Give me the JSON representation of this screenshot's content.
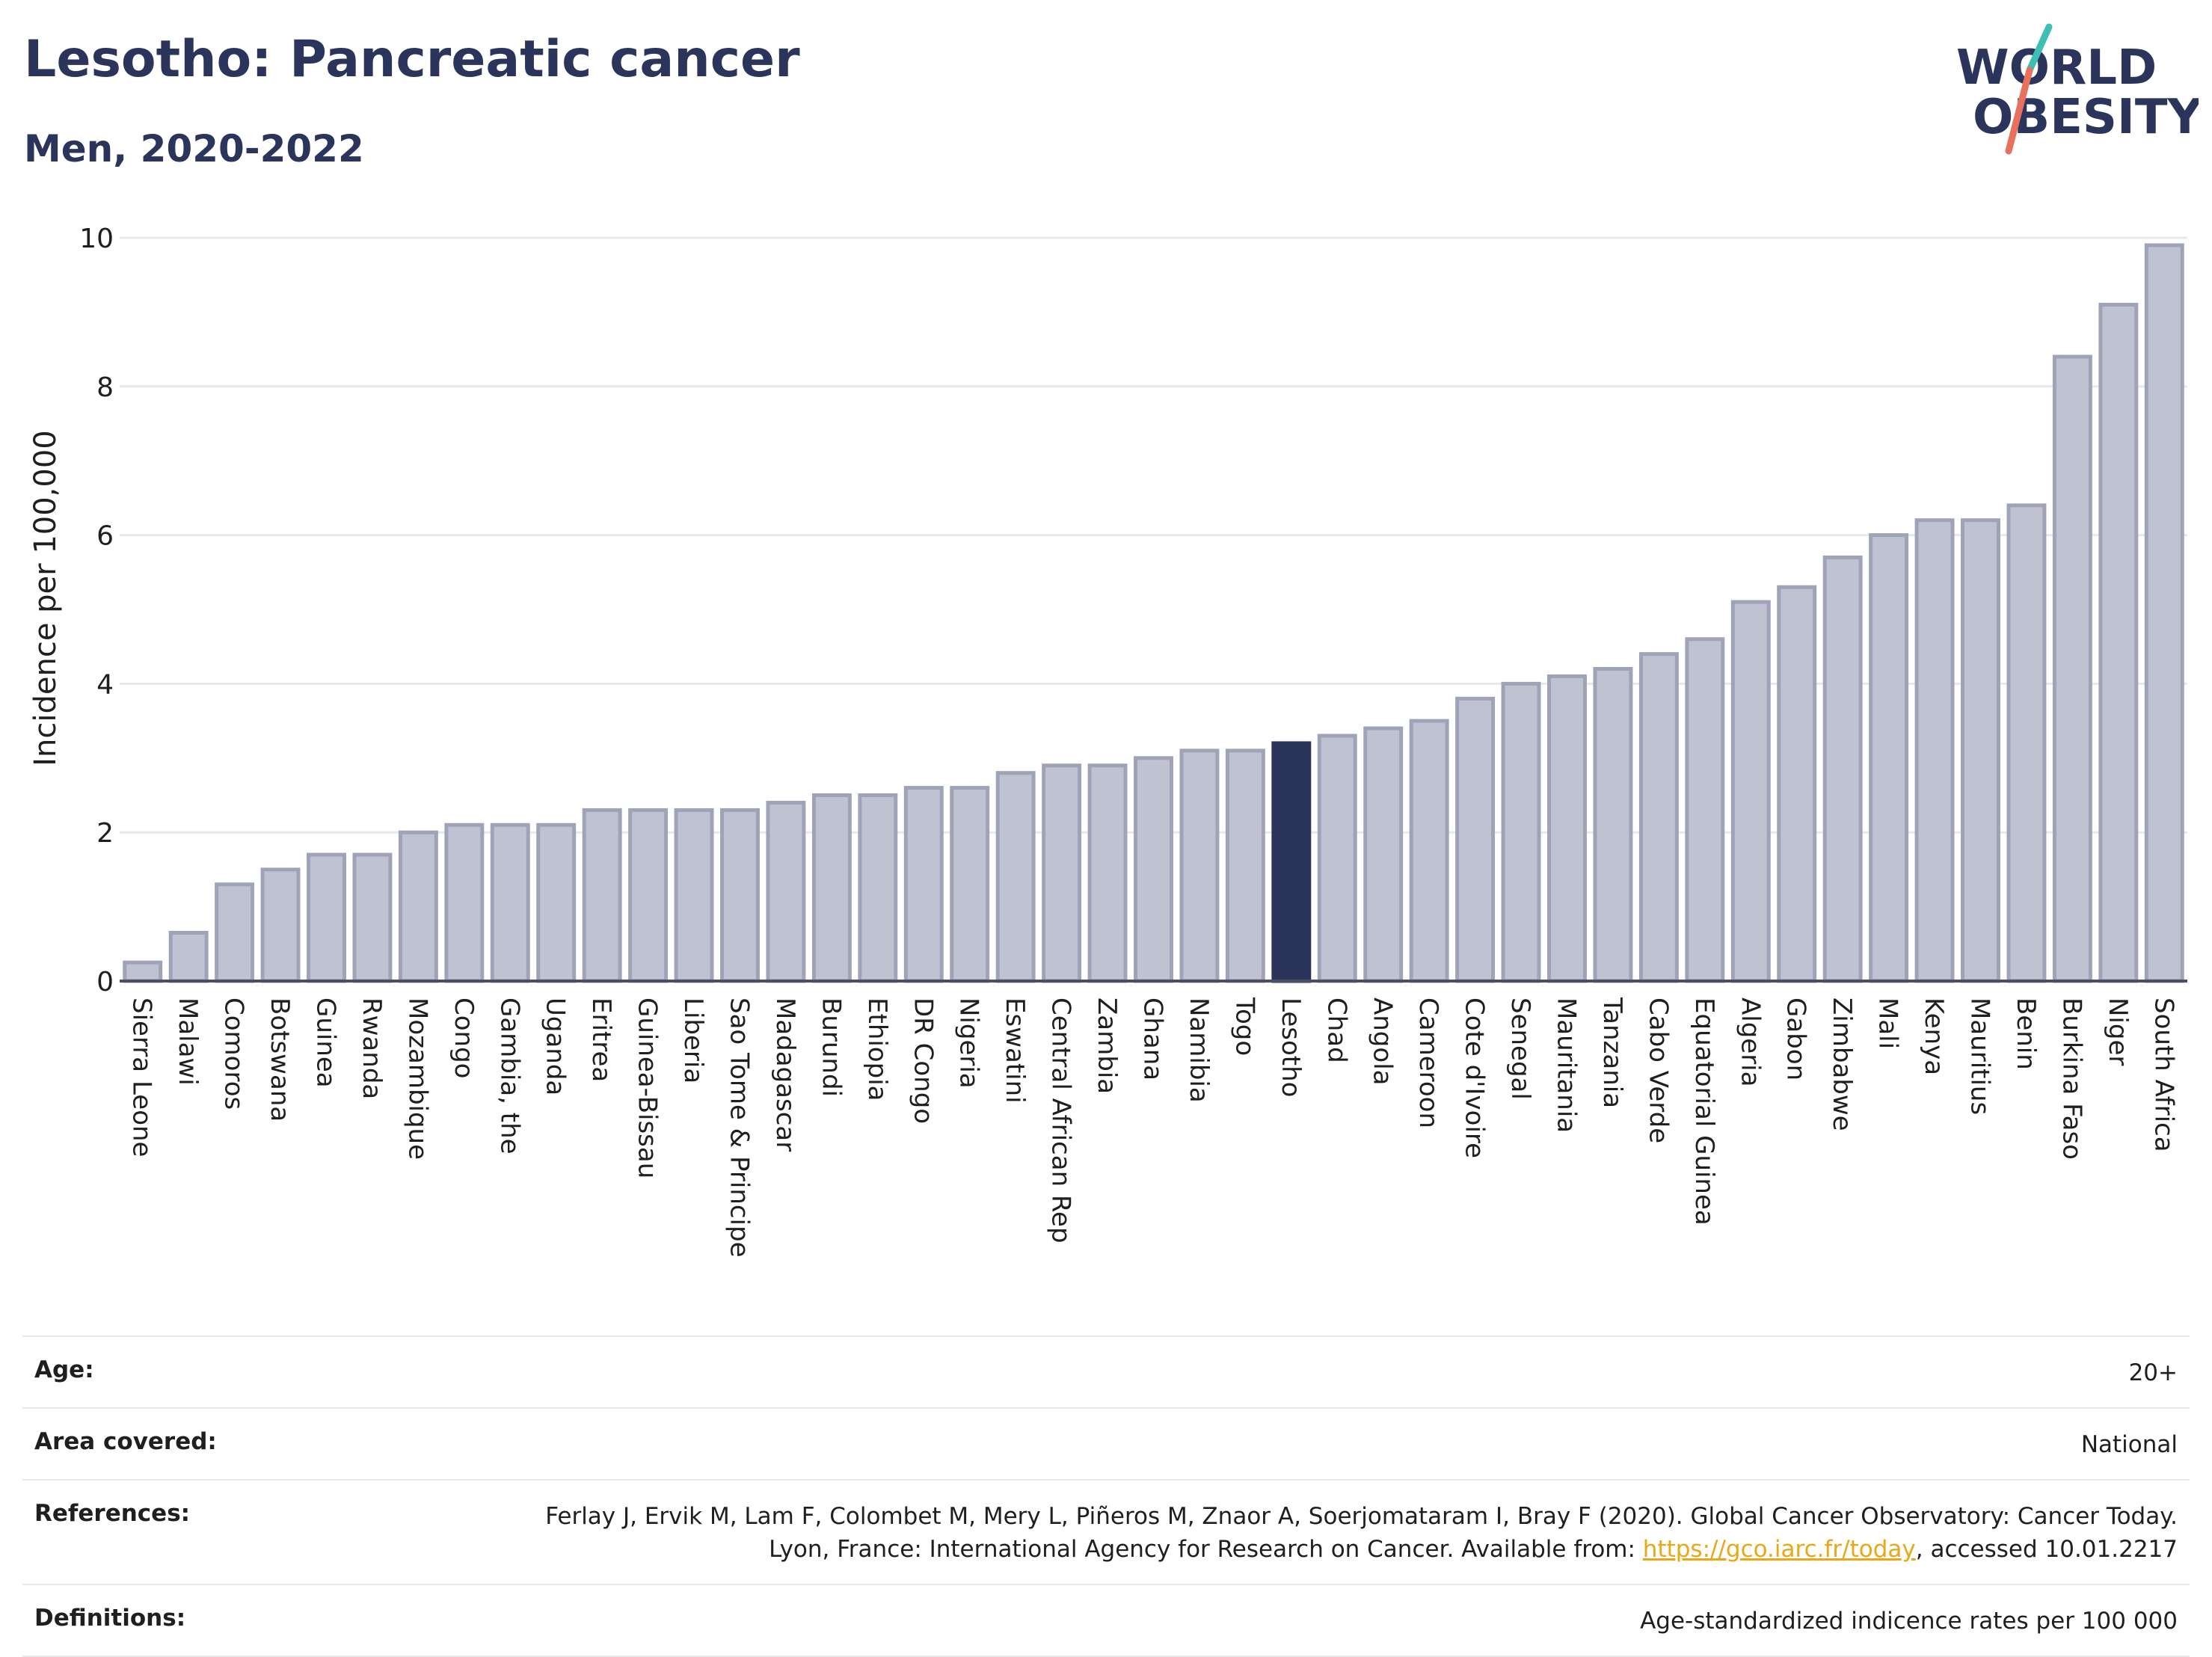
{
  "header": {
    "title": "Lesotho: Pancreatic cancer",
    "subtitle": "Men, 2020-2022",
    "logo_top": "WORLD",
    "logo_bottom": "OBESITY"
  },
  "chart_data": {
    "type": "bar",
    "ylabel": "Incidence per 100,000",
    "ylim": [
      0,
      10
    ],
    "yticks": [
      0,
      2,
      4,
      6,
      8,
      10
    ],
    "grid": true,
    "highlight": "Lesotho",
    "colors": {
      "bar": "#bfc3d1",
      "bar_edge": "#9ea3b8",
      "highlight": "#2b355c",
      "grid": "#e6e8ee"
    },
    "categories": [
      "Sierra Leone",
      "Malawi",
      "Comoros",
      "Botswana",
      "Guinea",
      "Rwanda",
      "Mozambique",
      "Congo",
      "Gambia, the",
      "Uganda",
      "Eritrea",
      "Guinea-Bissau",
      "Liberia",
      "Sao Tome & Principe",
      "Madagascar",
      "Burundi",
      "Ethiopia",
      "DR Congo",
      "Nigeria",
      "Eswatini",
      "Central African Rep",
      "Zambia",
      "Ghana",
      "Namibia",
      "Togo",
      "Lesotho",
      "Chad",
      "Angola",
      "Cameroon",
      "Cote d'Ivoire",
      "Senegal",
      "Mauritania",
      "Tanzania",
      "Cabo Verde",
      "Equatorial Guinea",
      "Algeria",
      "Gabon",
      "Zimbabwe",
      "Mali",
      "Kenya",
      "Mauritius",
      "Benin",
      "Burkina Faso",
      "Niger",
      "South Africa"
    ],
    "values": [
      0.25,
      0.65,
      1.3,
      1.5,
      1.7,
      1.7,
      2.0,
      2.1,
      2.1,
      2.1,
      2.3,
      2.3,
      2.3,
      2.3,
      2.4,
      2.5,
      2.5,
      2.6,
      2.6,
      2.8,
      2.9,
      2.9,
      3.0,
      3.1,
      3.1,
      3.2,
      3.3,
      3.4,
      3.5,
      3.8,
      4.0,
      4.1,
      4.2,
      4.4,
      4.6,
      5.1,
      5.3,
      5.7,
      6.0,
      6.2,
      6.2,
      6.4,
      8.4,
      9.1,
      9.9
    ]
  },
  "footer": {
    "age_label": "Age:",
    "age_value": "20+",
    "area_label": "Area covered:",
    "area_value": "National",
    "references_label": "References:",
    "references_text": "Ferlay J, Ervik M, Lam F, Colombet M, Mery L, Piñeros M, Znaor A, Soerjomataram I, Bray F (2020). Global Cancer Observatory: Cancer Today. Lyon, France: International Agency for Research on Cancer. Available from: ",
    "references_link": "https://gco.iarc.fr/today",
    "references_tail": ", accessed 10.01.2217",
    "definitions_label": "Definitions:",
    "definitions_value": "Age-standardized indicence rates per 100 000"
  }
}
